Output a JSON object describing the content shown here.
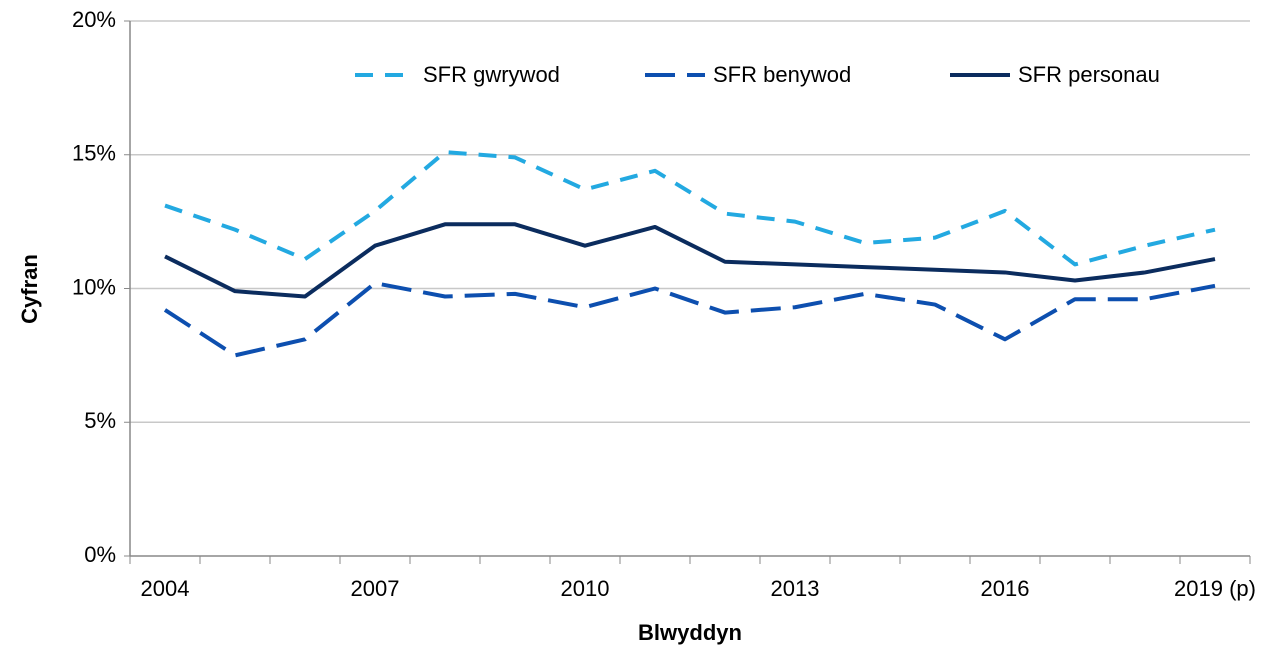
{
  "chart_data": {
    "type": "line",
    "x_label": "Blwyddyn",
    "y_label": "Cyfran",
    "categories": [
      "2004",
      null,
      null,
      "2007",
      null,
      null,
      "2010",
      null,
      null,
      "2013",
      null,
      null,
      "2016",
      null,
      null,
      "2019 (p)"
    ],
    "series": [
      {
        "name": "SFR gwrywod",
        "color": "#23a9e1",
        "style": "dashed",
        "values": [
          13.1,
          12.2,
          11.1,
          12.9,
          15.1,
          14.9,
          13.7,
          14.4,
          12.8,
          12.5,
          11.7,
          11.9,
          12.9,
          10.9,
          11.6,
          12.2
        ]
      },
      {
        "name": "SFR benywod",
        "color": "#0d4faf",
        "style": "long-dashed",
        "values": [
          9.2,
          7.5,
          8.1,
          10.2,
          9.7,
          9.8,
          9.3,
          10.0,
          9.1,
          9.3,
          9.8,
          9.4,
          8.1,
          9.6,
          9.6,
          10.1
        ]
      },
      {
        "name": "SFR personau",
        "color": "#0b2c5e",
        "style": "solid",
        "values": [
          11.2,
          9.9,
          9.7,
          11.6,
          12.4,
          12.4,
          11.6,
          12.3,
          11.0,
          10.9,
          10.8,
          10.7,
          10.6,
          10.3,
          10.6,
          11.1
        ]
      }
    ],
    "ylim": [
      0,
      20
    ],
    "yticks": [
      {
        "value": 0,
        "label": "0%"
      },
      {
        "value": 5,
        "label": "5%"
      },
      {
        "value": 10,
        "label": "10%"
      },
      {
        "value": 15,
        "label": "15%"
      },
      {
        "value": 20,
        "label": "20%"
      }
    ],
    "grid": true,
    "legend": "top-right"
  }
}
